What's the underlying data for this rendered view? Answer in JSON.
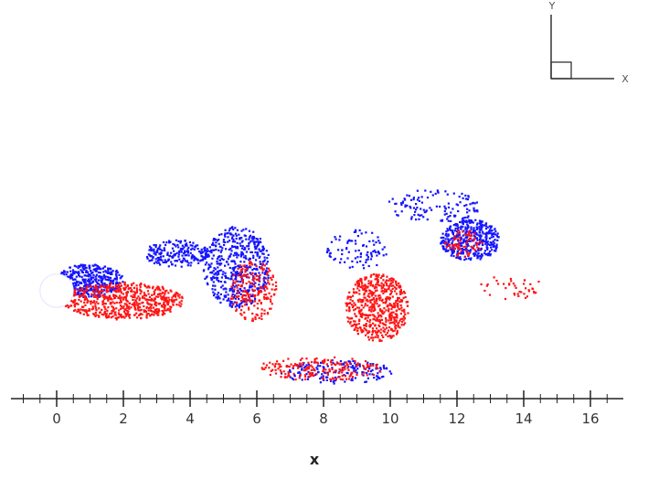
{
  "colors": {
    "series_a": "#1414ff",
    "series_b": "#ff1414",
    "axis": "#222222"
  },
  "chart_data": {
    "type": "scatter",
    "title": "",
    "xlabel": "x",
    "ylabel": "",
    "xlim": [
      -1.4,
      16.9
    ],
    "xticks": [
      "0",
      "2",
      "4",
      "6",
      "8",
      "10",
      "12",
      "14",
      "16"
    ],
    "minor_tick_step": 0.5,
    "grid": false,
    "legend": "none",
    "triad": {
      "vertical": "Y",
      "horizontal": "X"
    },
    "cylinder": {
      "x": 0,
      "y": 0,
      "r": 0.5
    },
    "series": [
      {
        "color_key": "series_a",
        "clusters": [
          {
            "x": 1.0,
            "y": 0.3,
            "rx": 1.0,
            "ry": 0.5,
            "n": 420
          },
          {
            "x": 3.6,
            "y": 1.1,
            "rx": 1.0,
            "ry": 0.4,
            "n": 220
          },
          {
            "x": 5.4,
            "y": 0.7,
            "rx": 1.0,
            "ry": 1.2,
            "n": 520
          },
          {
            "x": 9.0,
            "y": 1.2,
            "rx": 0.9,
            "ry": 0.6,
            "n": 90
          },
          {
            "x": 11.3,
            "y": 2.5,
            "rx": 1.4,
            "ry": 0.5,
            "n": 120
          },
          {
            "x": 12.4,
            "y": 1.5,
            "rx": 0.9,
            "ry": 0.6,
            "n": 420
          },
          {
            "x": 8.4,
            "y": -2.4,
            "rx": 1.7,
            "ry": 0.35,
            "n": 160
          }
        ]
      },
      {
        "color_key": "series_b",
        "clusters": [
          {
            "x": 2.0,
            "y": -0.3,
            "rx": 1.8,
            "ry": 0.55,
            "n": 620
          },
          {
            "x": 5.9,
            "y": 0.0,
            "rx": 0.7,
            "ry": 0.9,
            "n": 200
          },
          {
            "x": 9.6,
            "y": -0.5,
            "rx": 0.95,
            "ry": 1.0,
            "n": 560
          },
          {
            "x": 7.9,
            "y": -2.3,
            "rx": 1.9,
            "ry": 0.35,
            "n": 190
          },
          {
            "x": 13.6,
            "y": 0.1,
            "rx": 1.0,
            "ry": 0.35,
            "n": 40
          },
          {
            "x": 12.2,
            "y": 1.4,
            "rx": 0.6,
            "ry": 0.4,
            "n": 70
          }
        ]
      }
    ]
  }
}
